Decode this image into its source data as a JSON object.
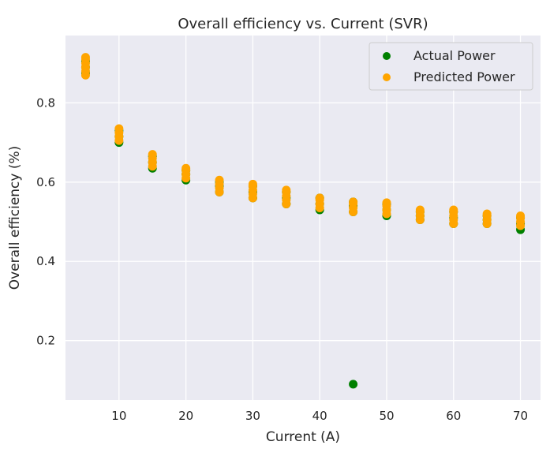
{
  "chart_data": {
    "type": "scatter",
    "title": "Overall efficiency vs. Current (SVR)",
    "xlabel": "Current (A)",
    "ylabel": "Overall efficiency (%)",
    "xlim": [
      2,
      73
    ],
    "ylim": [
      0.05,
      0.97
    ],
    "xticks": [
      10,
      20,
      30,
      40,
      50,
      60,
      70
    ],
    "yticks": [
      0.2,
      0.4,
      0.6,
      0.8
    ],
    "xtick_labels": [
      "10",
      "20",
      "30",
      "40",
      "50",
      "60",
      "70"
    ],
    "ytick_labels": [
      "0.2",
      "0.4",
      "0.6",
      "0.8"
    ],
    "grid": true,
    "legend_position": "top-right",
    "series": [
      {
        "name": "Actual Power",
        "color": "#008000",
        "points": [
          [
            5,
            0.875
          ],
          [
            5,
            0.89
          ],
          [
            5,
            0.905
          ],
          [
            10,
            0.7
          ],
          [
            10,
            0.715
          ],
          [
            10,
            0.73
          ],
          [
            15,
            0.635
          ],
          [
            15,
            0.65
          ],
          [
            15,
            0.665
          ],
          [
            20,
            0.605
          ],
          [
            20,
            0.62
          ],
          [
            20,
            0.63
          ],
          [
            25,
            0.575
          ],
          [
            25,
            0.59
          ],
          [
            25,
            0.6
          ],
          [
            30,
            0.56
          ],
          [
            30,
            0.575
          ],
          [
            30,
            0.59
          ],
          [
            35,
            0.545
          ],
          [
            35,
            0.56
          ],
          [
            35,
            0.575
          ],
          [
            40,
            0.53
          ],
          [
            40,
            0.545
          ],
          [
            40,
            0.56
          ],
          [
            45,
            0.09
          ],
          [
            45,
            0.525
          ],
          [
            45,
            0.54
          ],
          [
            45,
            0.55
          ],
          [
            50,
            0.515
          ],
          [
            50,
            0.53
          ],
          [
            50,
            0.545
          ],
          [
            55,
            0.505
          ],
          [
            55,
            0.515
          ],
          [
            55,
            0.525
          ],
          [
            60,
            0.495
          ],
          [
            60,
            0.51
          ],
          [
            60,
            0.525
          ],
          [
            65,
            0.495
          ],
          [
            65,
            0.505
          ],
          [
            65,
            0.515
          ],
          [
            70,
            0.48
          ],
          [
            70,
            0.495
          ],
          [
            70,
            0.51
          ]
        ]
      },
      {
        "name": "Predicted Power",
        "color": "#FFA500",
        "points": [
          [
            5,
            0.87
          ],
          [
            5,
            0.88
          ],
          [
            5,
            0.89
          ],
          [
            5,
            0.9
          ],
          [
            5,
            0.91
          ],
          [
            5,
            0.915
          ],
          [
            10,
            0.705
          ],
          [
            10,
            0.715
          ],
          [
            10,
            0.725
          ],
          [
            10,
            0.735
          ],
          [
            15,
            0.64
          ],
          [
            15,
            0.65
          ],
          [
            15,
            0.66
          ],
          [
            15,
            0.67
          ],
          [
            20,
            0.61
          ],
          [
            20,
            0.62
          ],
          [
            20,
            0.63
          ],
          [
            20,
            0.635
          ],
          [
            25,
            0.575
          ],
          [
            25,
            0.585
          ],
          [
            25,
            0.595
          ],
          [
            25,
            0.605
          ],
          [
            30,
            0.56
          ],
          [
            30,
            0.57
          ],
          [
            30,
            0.58
          ],
          [
            30,
            0.59
          ],
          [
            30,
            0.595
          ],
          [
            35,
            0.545
          ],
          [
            35,
            0.555
          ],
          [
            35,
            0.565
          ],
          [
            35,
            0.575
          ],
          [
            35,
            0.58
          ],
          [
            40,
            0.535
          ],
          [
            40,
            0.545
          ],
          [
            40,
            0.555
          ],
          [
            40,
            0.56
          ],
          [
            45,
            0.525
          ],
          [
            45,
            0.535
          ],
          [
            45,
            0.545
          ],
          [
            45,
            0.55
          ],
          [
            50,
            0.52
          ],
          [
            50,
            0.53
          ],
          [
            50,
            0.54
          ],
          [
            50,
            0.548
          ],
          [
            55,
            0.505
          ],
          [
            55,
            0.515
          ],
          [
            55,
            0.525
          ],
          [
            55,
            0.53
          ],
          [
            60,
            0.495
          ],
          [
            60,
            0.505
          ],
          [
            60,
            0.515
          ],
          [
            60,
            0.525
          ],
          [
            60,
            0.53
          ],
          [
            65,
            0.495
          ],
          [
            65,
            0.505
          ],
          [
            65,
            0.515
          ],
          [
            65,
            0.52
          ],
          [
            70,
            0.49
          ],
          [
            70,
            0.5
          ],
          [
            70,
            0.51
          ],
          [
            70,
            0.515
          ]
        ]
      }
    ]
  },
  "colors": {
    "plot_background": "#EAEAF2",
    "grid": "#FFFFFF"
  }
}
